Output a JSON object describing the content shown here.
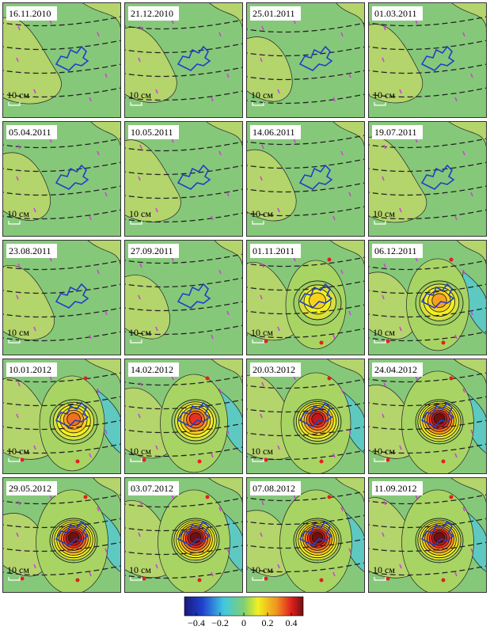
{
  "panels": [
    {
      "date": "16.11.2010",
      "scale": "10 см"
    },
    {
      "date": "21.12.2010",
      "scale": "10 см"
    },
    {
      "date": "25.01.2011",
      "scale": "10 см"
    },
    {
      "date": "01.03.2011",
      "scale": "10 см"
    },
    {
      "date": "05.04.2011",
      "scale": "10 см"
    },
    {
      "date": "10.05.2011",
      "scale": "10 см"
    },
    {
      "date": "14.06.2011",
      "scale": "10 см"
    },
    {
      "date": "19.07.2011",
      "scale": "10 см"
    },
    {
      "date": "23.08.2011",
      "scale": "10 см"
    },
    {
      "date": "27.09.2011",
      "scale": "10 см"
    },
    {
      "date": "01.11.2011",
      "scale": "10 см"
    },
    {
      "date": "06.12.2011",
      "scale": "10 см"
    },
    {
      "date": "10.01.2012",
      "scale": "10 см"
    },
    {
      "date": "14.02.2012",
      "scale": "10 см"
    },
    {
      "date": "20.03.2012",
      "scale": "10 см"
    },
    {
      "date": "24.04.2012",
      "scale": "10 см"
    },
    {
      "date": "29.05.2012",
      "scale": "10 см"
    },
    {
      "date": "03.07.2012",
      "scale": "10 см"
    },
    {
      "date": "07.08.2012",
      "scale": "10 см"
    },
    {
      "date": "11.09.2012",
      "scale": "10 см"
    }
  ],
  "colorbar": {
    "range": [
      -0.5,
      0.5
    ],
    "ticks": [
      {
        "value": -0.4,
        "label": "−0.4"
      },
      {
        "value": -0.2,
        "label": "−0.2"
      },
      0,
      0.2,
      0.4
    ]
  }
}
